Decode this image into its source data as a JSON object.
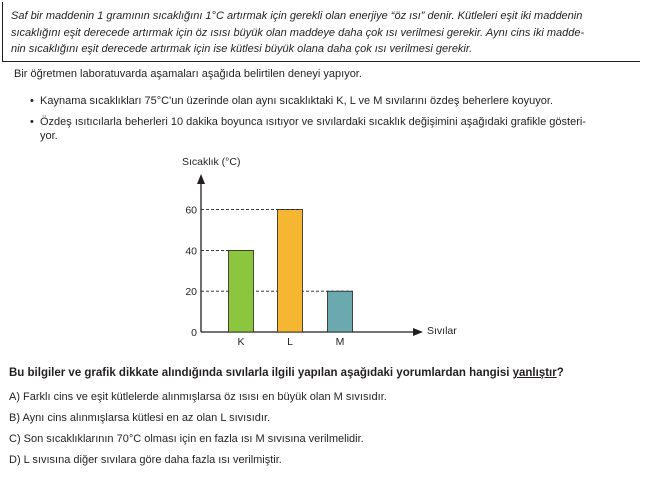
{
  "info": {
    "line1": "Saf bir maddenin 1 gramının sıcaklığını 1°C artırmak için gerekli olan enerjiye “öz ısı” denir. Kütleleri eşit iki maddenin",
    "line2": "sıcaklığını eşit derecede artırmak için öz ısısı büyük olan maddeye daha çok ısı verilmesi gerekir. Aynı cins iki madde-",
    "line3": "nin sıcaklığını eşit derecede artırmak için ise kütlesi büyük olana daha çok ısı verilmesi gerekir."
  },
  "intro": "Bir öğretmen laboratuvarda aşamaları aşağıda belirtilen deneyi yapıyor.",
  "bullets": {
    "symbol": "•",
    "b1": "Kaynama sıcaklıkları 75°C'un üzerinde olan aynı sıcaklıktaki K, L ve M sıvılarını özdeş beherlere koyuyor.",
    "b2_line1": "Özdeş ısıtıcılarla beherleri 10 dakika boyunca ısıtıyor ve sıvılardaki sıcaklık değişimini aşağıdaki grafikle gösteri-",
    "b2_line2": "yor."
  },
  "chart_data": {
    "type": "bar",
    "categories": [
      "K",
      "L",
      "M"
    ],
    "values": [
      40,
      60,
      20
    ],
    "ylabel": "Sıcaklık (°C)",
    "xlabel": "Sıvılar",
    "yticks": [
      "0",
      "20",
      "40",
      "60"
    ],
    "ylim": [
      0,
      70
    ],
    "colors": [
      "#8cc63f",
      "#f5b731",
      "#6aa9ad"
    ],
    "grid": "dashed reference lines at 20, 40, 60",
    "legend": "none"
  },
  "question": {
    "before": "Bu bilgiler ve grafik dikkate alındığında sıvılarla ilgili yapılan aşağıdaki yorumlardan hangisi ",
    "underlined": "yanlıştır",
    "after": "?"
  },
  "options": {
    "a": "A) Farklı cins ve eşit kütlelerde alınmışlarsa öz ısısı en büyük olan M sıvısıdır.",
    "b": "B) Aynı cins alınmışlarsa kütlesi en az olan L sıvısıdır.",
    "c": "C) Son sıcaklıklarının 70°C olması için en fazla ısı M sıvısına verilmelidir.",
    "d": "D) L sıvısına diğer sıvılara göre daha fazla ısı verilmiştir."
  }
}
